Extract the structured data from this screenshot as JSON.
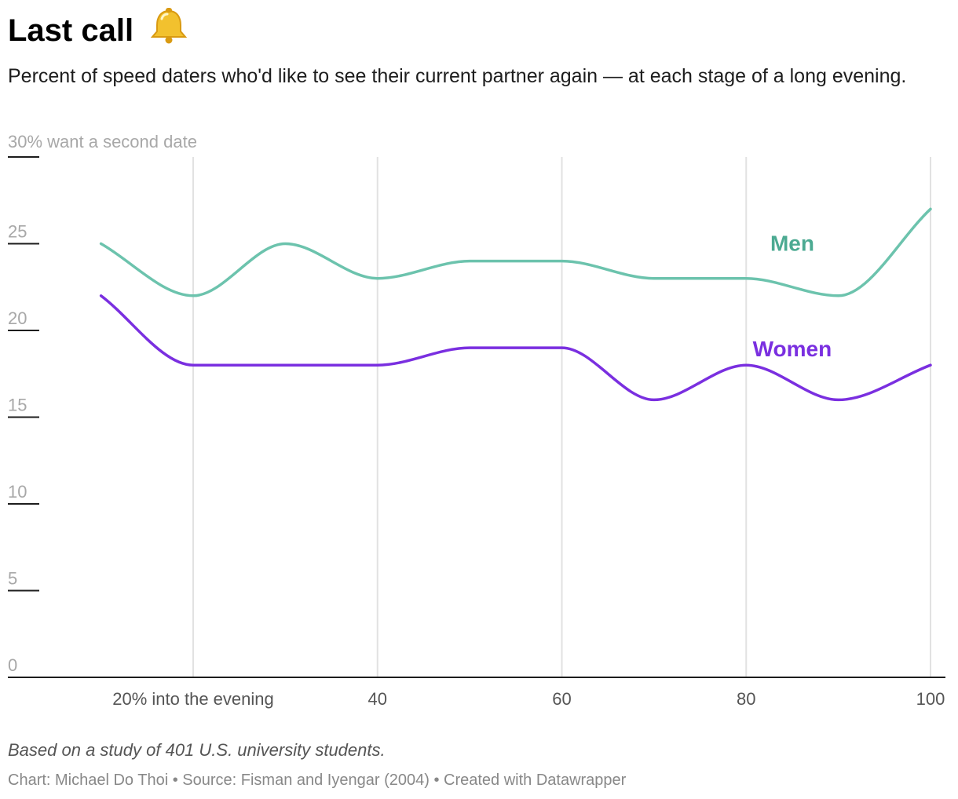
{
  "header": {
    "title": "Last call",
    "title_icon": "bell-icon",
    "subtitle": "Percent of speed daters who'd like to see their current partner again — at each stage of a long evening."
  },
  "footer": {
    "note": "Based on a study of 401 U.S. university students.",
    "credit": "Chart: Michael Do Thoi • Source: Fisman and Iyengar (2004) • Created with Datawrapper"
  },
  "colors": {
    "men": "#6cc3ad",
    "men_label": "#4caa92",
    "women": "#7a2fe0",
    "grid": "#e2e2e2",
    "tick_text": "#a8a8a8",
    "axis": "#1d1d1d",
    "bell": "#f2c12e"
  },
  "chart_data": {
    "type": "line",
    "ylabel": "30% want a second date",
    "ylim": [
      0,
      30
    ],
    "xlim": [
      15,
      100
    ],
    "y_ticks": [
      {
        "value": 30,
        "label": ""
      },
      {
        "value": 25,
        "label": "25"
      },
      {
        "value": 20,
        "label": "20"
      },
      {
        "value": 15,
        "label": "15"
      },
      {
        "value": 10,
        "label": "10"
      },
      {
        "value": 5,
        "label": "5"
      },
      {
        "value": 0,
        "label": "0"
      }
    ],
    "x_ticks": [
      {
        "value": 20,
        "label": "20% into the evening"
      },
      {
        "value": 40,
        "label": "40"
      },
      {
        "value": 60,
        "label": "60"
      },
      {
        "value": 80,
        "label": "80"
      },
      {
        "value": 100,
        "label": "100"
      }
    ],
    "x": [
      10,
      20,
      30,
      40,
      50,
      60,
      70,
      80,
      90,
      100
    ],
    "series": [
      {
        "name": "Men",
        "key": "men",
        "values": [
          25,
          22,
          25,
          23,
          24,
          24,
          23,
          23,
          22,
          27
        ]
      },
      {
        "name": "Women",
        "key": "women",
        "values": [
          22,
          18,
          18,
          18,
          19,
          19,
          16,
          18,
          16,
          18
        ]
      }
    ],
    "grid": "vertical",
    "legend": "inline labels"
  }
}
